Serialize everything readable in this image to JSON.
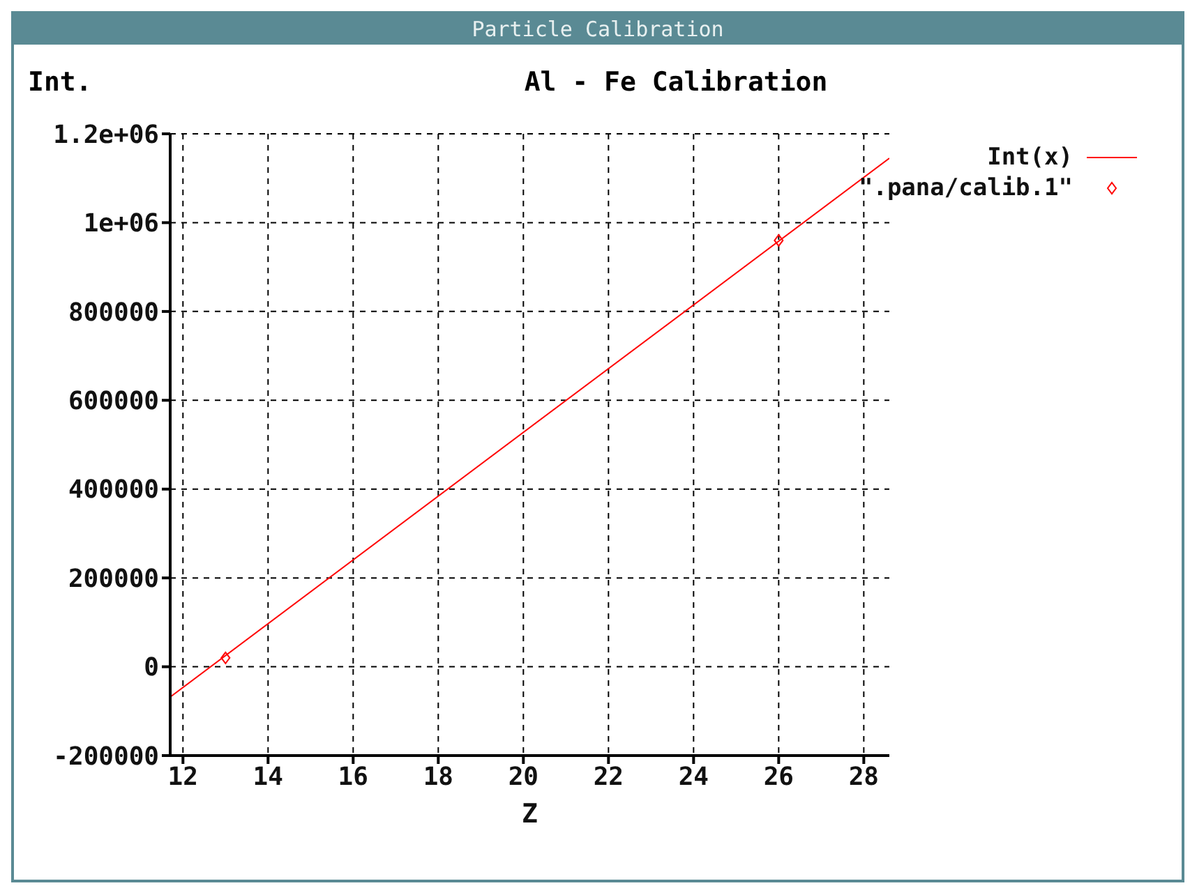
{
  "chart_data": {
    "type": "line",
    "title": "Al - Fe  Calibration",
    "xlabel": "Z",
    "ylabel": "Int.",
    "annotations": [
      "Particle Calibration"
    ],
    "series": [
      {
        "name": "Int(x)",
        "type": "line",
        "color": "#ff0000",
        "x": [
          11.7,
          28.6
        ],
        "values": [
          -68000,
          1145000
        ],
        "marker": "none",
        "line_style": "solid"
      },
      {
        "name": "\".pana/calib.1\"",
        "type": "scatter",
        "color": "#ff0000",
        "x": [
          13,
          26
        ],
        "values": [
          20000,
          960000
        ],
        "marker": "diamond"
      }
    ],
    "xlim": [
      11.7,
      28.6
    ],
    "xticks": [
      12,
      14,
      16,
      18,
      20,
      22,
      24,
      26,
      28
    ],
    "ylim": [
      -200000,
      1200000
    ],
    "yticks": [
      -200000,
      0,
      200000,
      400000,
      600000,
      800000,
      {
        "value": 1000000,
        "label": "1e+06"
      },
      {
        "value": 1200000,
        "label": "1.2e+06"
      }
    ],
    "grid": true,
    "legend": "top right"
  }
}
